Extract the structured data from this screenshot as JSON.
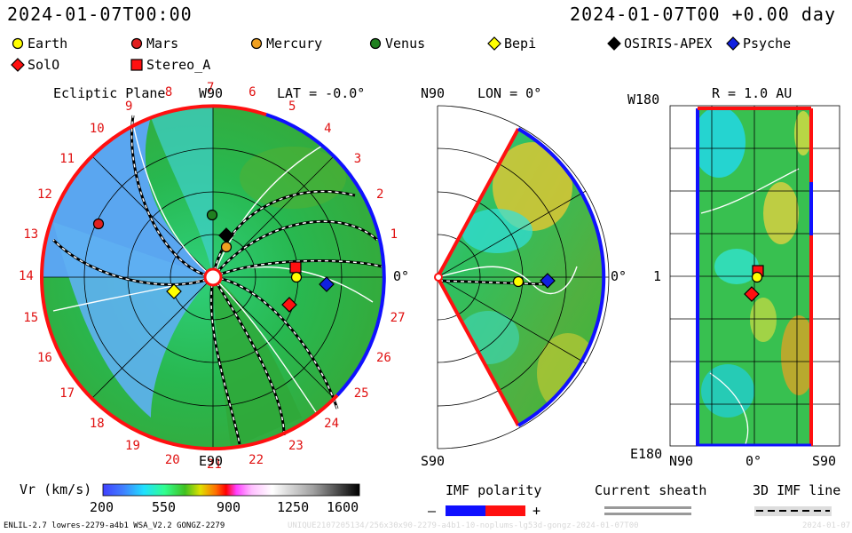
{
  "header": {
    "timestamp": "2024-01-07T00:00",
    "forecast": "2024-01-07T00 +0.00 day"
  },
  "legend": [
    {
      "label": "Earth",
      "marker": "circle",
      "color": "#ffff00"
    },
    {
      "label": "Mars",
      "marker": "circle",
      "color": "#e02020"
    },
    {
      "label": "Mercury",
      "marker": "circle",
      "color": "#f0a020"
    },
    {
      "label": "Venus",
      "marker": "circle",
      "color": "#208020"
    },
    {
      "label": "Bepi",
      "marker": "diamond",
      "color": "#ffff00"
    },
    {
      "label": "OSIRIS-APEX",
      "marker": "diamond",
      "color": "#000000"
    },
    {
      "label": "Psyche",
      "marker": "diamond",
      "color": "#1020e0"
    },
    {
      "label": "SolO",
      "marker": "diamond",
      "color": "#ff1010"
    },
    {
      "label": "Stereo_A",
      "marker": "square",
      "color": "#ff1010"
    }
  ],
  "ecliptic": {
    "title": "Ecliptic Plane",
    "lat": "LAT = -0.0°",
    "top": "W90",
    "bottom": "E90",
    "right": "0°",
    "carrington": [
      "1",
      "2",
      "3",
      "4",
      "5",
      "6",
      "7",
      "8",
      "9",
      "10",
      "11",
      "12",
      "13",
      "14",
      "15",
      "16",
      "17",
      "18",
      "19",
      "20",
      "21",
      "22",
      "23",
      "24",
      "25",
      "26",
      "27"
    ]
  },
  "meridional": {
    "top": "N90",
    "bottom": "S90",
    "lon": "LON = 0°",
    "right": "0°"
  },
  "map": {
    "title": "R = 1.0 AU",
    "top_left": "W180",
    "bottom_left": "E180",
    "mid_left": "1",
    "bottom_labels": [
      "N90",
      "0°",
      "S90"
    ]
  },
  "colorbar": {
    "title": "Vr (km/s)",
    "ticks": [
      "200",
      "550",
      "900",
      "1250",
      "1600"
    ]
  },
  "imf": {
    "title": "IMF polarity",
    "minus": "–",
    "plus": "+",
    "minus_color": "#1010ff",
    "plus_color": "#ff1010"
  },
  "sheath": {
    "title": "Current sheath"
  },
  "imfline": {
    "title": "3D IMF line"
  },
  "footer": {
    "model": "ENLIL-2.7 lowres-2279-a4b1 WSA_V2.2 GONGZ-2279",
    "run": "UNIQUE2107205134/256x30x90-2279-a4b1-10-noplums-lg53d-gongz-2024-01-07T00",
    "date": "2024-01-07"
  }
}
